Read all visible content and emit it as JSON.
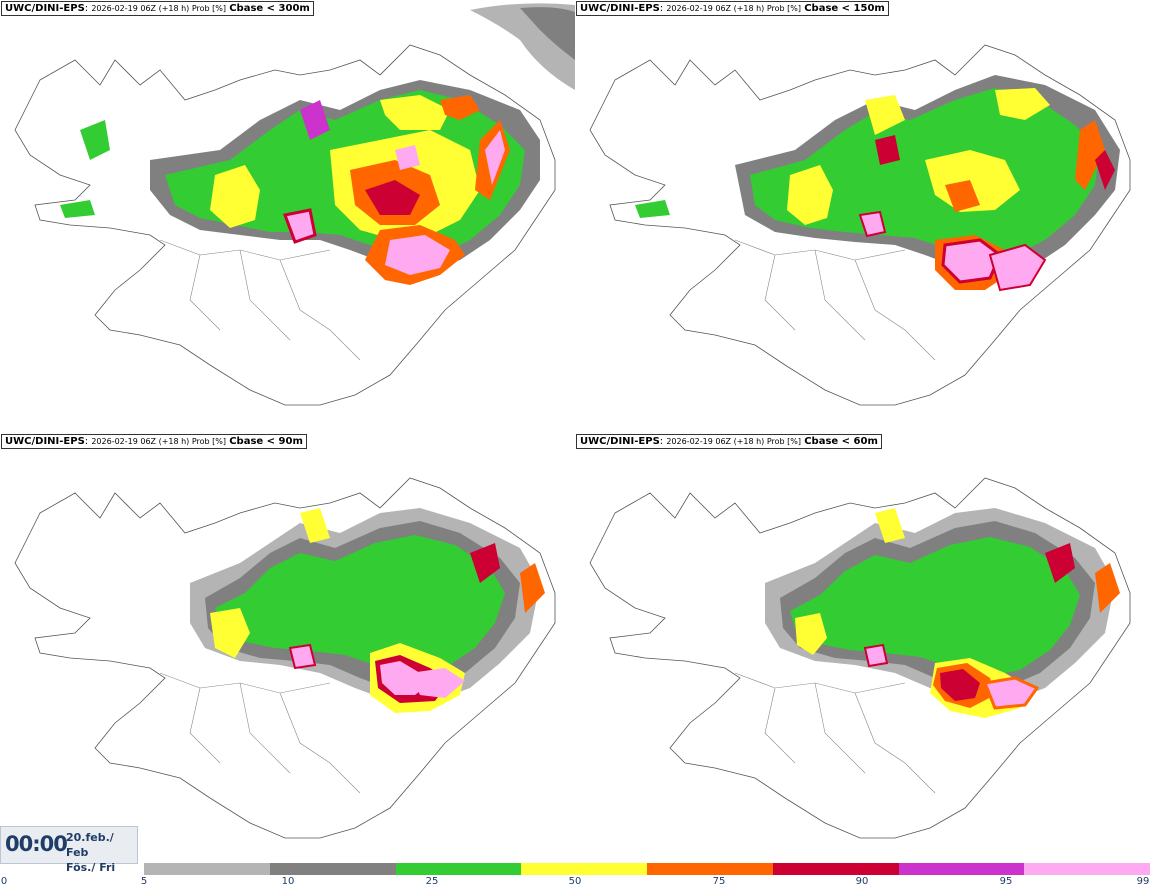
{
  "panels": [
    {
      "model": "UWC/DINI-EPS",
      "run": "2026-02-19 06Z (+18 h) Prob [%]",
      "var": "Cbase < 300m"
    },
    {
      "model": "UWC/DINI-EPS",
      "run": "2026-02-19 06Z (+18 h) Prob [%]",
      "var": "Cbase < 150m"
    },
    {
      "model": "UWC/DINI-EPS",
      "run": "2026-02-19 06Z (+18 h) Prob [%]",
      "var": "Cbase < 90m"
    },
    {
      "model": "UWC/DINI-EPS",
      "run": "2026-02-19 06Z (+18 h) Prob [%]",
      "var": "Cbase < 60m"
    }
  ],
  "valid_time": {
    "hour": "00:00",
    "date": "20.feb./ Feb",
    "day": "Fös./ Fri"
  },
  "legend": {
    "ticks": [
      "0",
      "5",
      "10",
      "25",
      "50",
      "75",
      "90",
      "95",
      "99"
    ],
    "colors": [
      "#b4b4b4",
      "#808080",
      "#33cc33",
      "#ffff33",
      "#ff6600",
      "#cc0033",
      "#cc33cc",
      "#ffaaf0"
    ]
  }
}
